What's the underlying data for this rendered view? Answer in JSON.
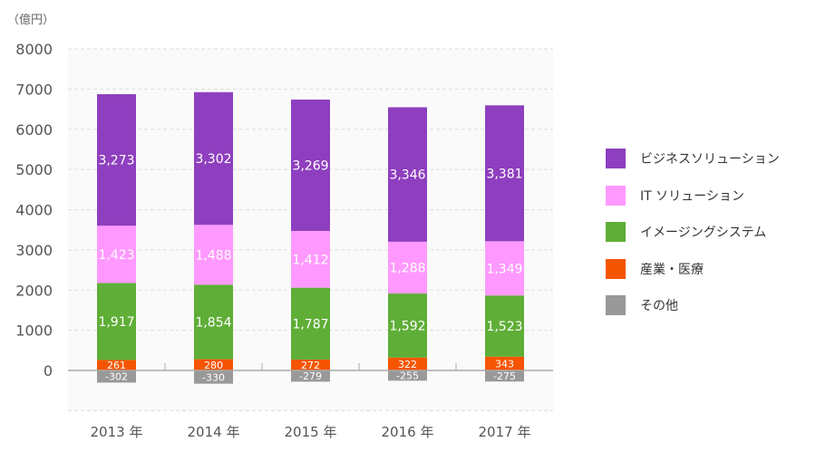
{
  "chart_data": {
    "type": "bar",
    "stacked": true,
    "unit_label": "（億円）",
    "categories": [
      "2013 年",
      "2014 年",
      "2015 年",
      "2016 年",
      "2017 年"
    ],
    "ylim": [
      -1000,
      8000
    ],
    "yticks": [
      0,
      1000,
      2000,
      3000,
      4000,
      5000,
      6000,
      7000,
      8000
    ],
    "grid": true,
    "legend_position": "right",
    "series": [
      {
        "name": "その他",
        "color": "#999999",
        "values": [
          -302,
          -330,
          -279,
          -255,
          -275
        ],
        "labels": [
          "-302",
          "-330",
          "-279",
          "-255",
          "-275"
        ]
      },
      {
        "name": "産業・医療",
        "color": "#f55500",
        "values": [
          261,
          280,
          272,
          322,
          343
        ],
        "labels": [
          "261",
          "280",
          "272",
          "322",
          "343"
        ]
      },
      {
        "name": "イメージングシステム",
        "color": "#5fae37",
        "values": [
          1917,
          1854,
          1787,
          1592,
          1523
        ],
        "labels": [
          "1,917",
          "1,854",
          "1,787",
          "1,592",
          "1,523"
        ]
      },
      {
        "name": "IT ソリューション",
        "color": "#ff99ff",
        "values": [
          1423,
          1488,
          1412,
          1288,
          1349
        ],
        "labels": [
          "1,423",
          "1,488",
          "1,412",
          "1,288",
          "1,349"
        ]
      },
      {
        "name": "ビジネスソリューション",
        "color": "#8e3fbf",
        "values": [
          3273,
          3302,
          3269,
          3346,
          3381
        ],
        "labels": [
          "3,273",
          "3,302",
          "3,269",
          "3,346",
          "3,381"
        ]
      }
    ],
    "legend_order": [
      4,
      3,
      2,
      1,
      0
    ]
  }
}
